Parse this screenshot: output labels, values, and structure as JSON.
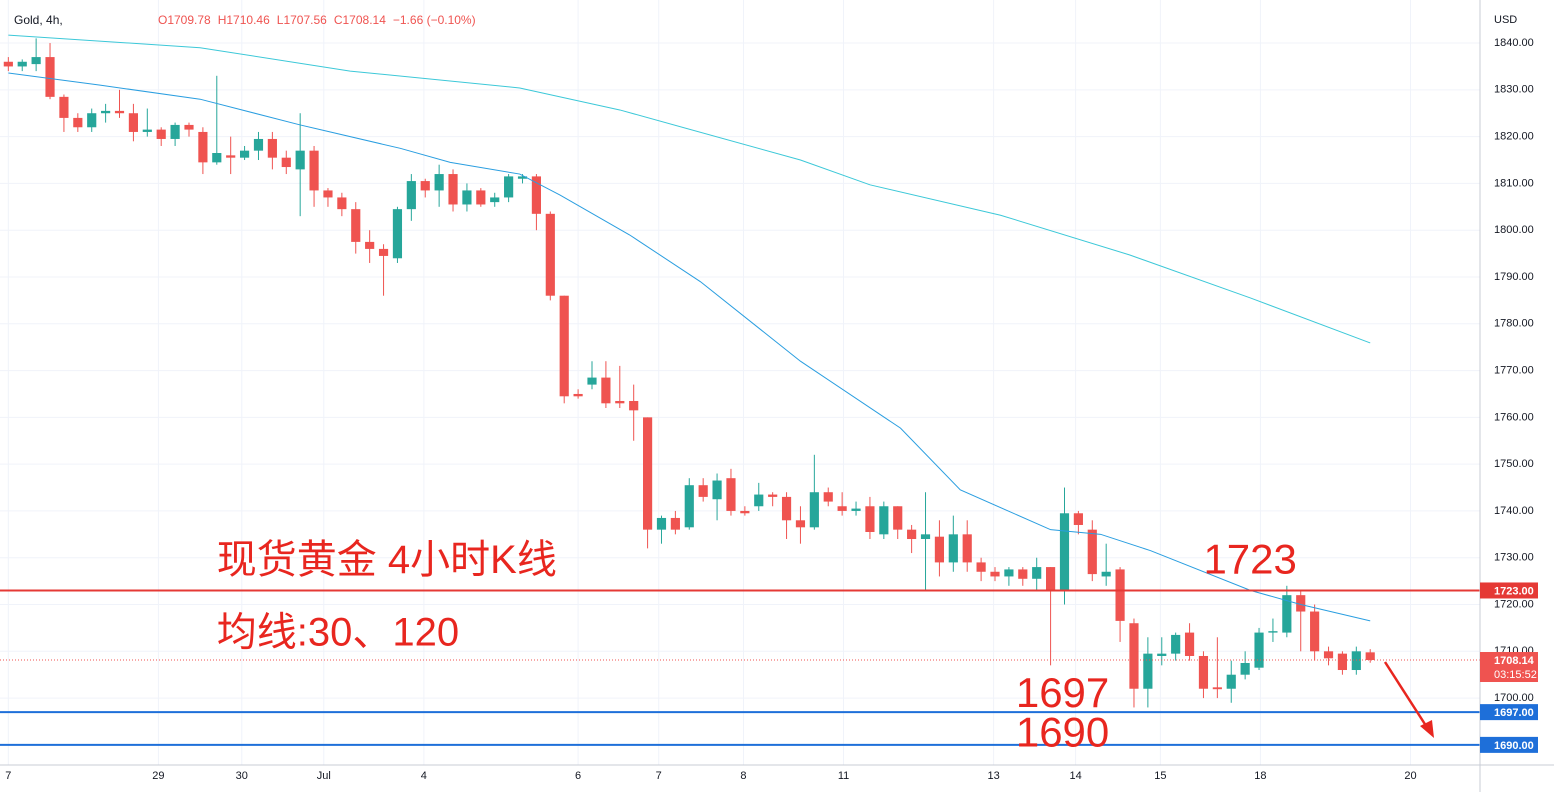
{
  "chart_data": {
    "type": "candlestick",
    "header": {
      "symbol": "Gold, 4h,",
      "ohlc": [
        "O1709.78",
        "H1710.46",
        "L1707.56",
        "C1708.14",
        "−1.66 (−0.10%)"
      ]
    },
    "currency": "USD",
    "annotations": [
      {
        "text": "现货黄金 4小时K线",
        "at": [
          15,
          1729
        ]
      },
      {
        "text": "均线:30、120",
        "at": [
          15,
          1713.5
        ]
      },
      {
        "text": "1723",
        "at": [
          86,
          1729
        ]
      },
      {
        "text": "1697",
        "at": [
          72.5,
          1700.5
        ]
      },
      {
        "text": "1690",
        "at": [
          72.5,
          1692
        ]
      }
    ],
    "open": [
      1836,
      1835,
      1835.5,
      1837,
      1828.5,
      1824,
      1822,
      1825,
      1825.5,
      1825,
      1821,
      1821.5,
      1819.5,
      1822.5,
      1821,
      1814.5,
      1816,
      1815.5,
      1817,
      1819.5,
      1815.5,
      1813,
      1817,
      1808.5,
      1807,
      1804.5,
      1797.5,
      1796,
      1794,
      1804.5,
      1810.5,
      1808.5,
      1812,
      1805.5,
      1808.5,
      1806,
      1807,
      1811,
      1811.5,
      1803.5,
      1786,
      1765,
      1767,
      1768.5,
      1763.5,
      1763.5,
      1760,
      1736,
      1738.5,
      1736.5,
      1745.5,
      1742.5,
      1747,
      1740,
      1741,
      1743.5,
      1743,
      1738,
      1736.5,
      1744,
      1741,
      1740,
      1741,
      1735,
      1741,
      1736,
      1734,
      1734.5,
      1729,
      1735,
      1729,
      1727,
      1726,
      1727.5,
      1725.5,
      1728,
      1723,
      1739.5,
      1736,
      1726,
      1727.5,
      1716,
      1702,
      1709,
      1709.5,
      1714,
      1709,
      1702.3,
      1702,
      1705,
      1706.5,
      1714,
      1714,
      1722,
      1718.5,
      1710,
      1709.5,
      1706,
      1709.78
    ],
    "high": [
      1837,
      1836.5,
      1841,
      1840,
      1829,
      1825,
      1826,
      1827,
      1830,
      1827,
      1826,
      1822,
      1823,
      1823,
      1822,
      1833,
      1820,
      1818,
      1821,
      1821,
      1817,
      1825,
      1818,
      1809,
      1808,
      1806,
      1800,
      1797,
      1805,
      1812,
      1811,
      1814,
      1813,
      1810,
      1809,
      1808,
      1812,
      1812,
      1812,
      1804,
      1786,
      1766,
      1772,
      1772,
      1771,
      1767,
      1760,
      1739,
      1740,
      1747,
      1747,
      1748,
      1749,
      1741,
      1746,
      1744,
      1744,
      1741,
      1752,
      1745,
      1744,
      1742,
      1743,
      1742,
      1741,
      1737,
      1744,
      1738,
      1739,
      1738,
      1730,
      1728,
      1728,
      1728,
      1730,
      1728,
      1745,
      1740,
      1738,
      1733,
      1728,
      1717,
      1713,
      1713,
      1714,
      1716,
      1710,
      1713,
      1708,
      1710,
      1715,
      1717,
      1724,
      1723,
      1720,
      1711,
      1710,
      1711,
      1710.46
    ],
    "low": [
      1834,
      1834,
      1834,
      1828,
      1821,
      1821,
      1821,
      1823,
      1824,
      1819,
      1820,
      1818,
      1818,
      1820,
      1812,
      1814,
      1812,
      1815,
      1815,
      1813,
      1812,
      1803,
      1805,
      1805,
      1803,
      1795,
      1793,
      1786,
      1793,
      1802,
      1807,
      1805,
      1804,
      1804,
      1805,
      1805,
      1806,
      1810,
      1800,
      1785,
      1763,
      1764,
      1766,
      1762,
      1762,
      1755,
      1732,
      1733,
      1735,
      1736,
      1742,
      1738,
      1739,
      1739,
      1740,
      1741,
      1734,
      1733,
      1736,
      1741,
      1739,
      1739,
      1734,
      1734,
      1734,
      1731,
      1723,
      1726,
      1727,
      1727,
      1725,
      1725,
      1724,
      1724,
      1723,
      1707,
      1720,
      1735,
      1725,
      1724,
      1712,
      1698,
      1698,
      1707,
      1708,
      1708,
      1700,
      1700,
      1699,
      1704,
      1706,
      1712,
      1713,
      1710,
      1708,
      1707,
      1705,
      1705,
      1707.56
    ],
    "close": [
      1835,
      1836,
      1837,
      1828.5,
      1824,
      1822,
      1825,
      1825.5,
      1825,
      1821,
      1821.5,
      1819.5,
      1822.5,
      1821.5,
      1814.5,
      1816.5,
      1815.5,
      1817,
      1819.5,
      1815.5,
      1813.5,
      1817,
      1808.5,
      1807,
      1804.5,
      1797.5,
      1796,
      1794.5,
      1804.5,
      1810.5,
      1808.5,
      1812,
      1805.5,
      1808.5,
      1805.5,
      1807,
      1811.5,
      1811.5,
      1803.5,
      1786,
      1764.5,
      1764.5,
      1768.5,
      1763,
      1763,
      1761.5,
      1736,
      1738.5,
      1736,
      1745.5,
      1743,
      1746.5,
      1740,
      1739.5,
      1743.5,
      1743,
      1738,
      1736.5,
      1744,
      1742,
      1740,
      1740.5,
      1735.5,
      1741,
      1736,
      1734,
      1735,
      1729,
      1735,
      1729,
      1727,
      1726,
      1727.5,
      1725.5,
      1728,
      1723,
      1739.5,
      1737,
      1726.5,
      1727,
      1716.5,
      1702,
      1709.5,
      1709.5,
      1713.5,
      1709,
      1702,
      1701.9,
      1705,
      1707.5,
      1714,
      1714.3,
      1722,
      1718.5,
      1710,
      1708.5,
      1706,
      1710,
      1708.14
    ],
    "up_color": "#26a69a",
    "down_color": "#ef5350",
    "series": [
      {
        "name": "MA30",
        "color": "#2a9ee0",
        "x": [
          0,
          6.6,
          13.8,
          21,
          28.2,
          31.8,
          36.8,
          39.7,
          44.7,
          49.8,
          57,
          64.2,
          68.5,
          75,
          78.6,
          82.2,
          89.4,
          93,
          98
        ],
        "values": [
          1833.6,
          1831,
          1828,
          1822.5,
          1817.5,
          1814.5,
          1812,
          1807.5,
          1799,
          1789,
          1772,
          1757.7,
          1744.5,
          1736,
          1735,
          1731.5,
          1723,
          1720,
          1716.5
        ]
      },
      {
        "name": "MA120",
        "color": "#3cc8d8",
        "x": [
          0,
          13.8,
          24.6,
          36.8,
          44,
          57,
          62,
          71.4,
          80.7,
          89.4,
          98
        ],
        "values": [
          1841.7,
          1839,
          1834,
          1830.4,
          1825.7,
          1815,
          1809.7,
          1803.2,
          1794.7,
          1785.5,
          1775.9
        ]
      }
    ],
    "levels": [
      {
        "value": 1723,
        "label": "1723.00",
        "color": "#e53935"
      },
      {
        "value": 1697,
        "label": "1697.00",
        "color": "#1e6fd9"
      },
      {
        "value": 1690,
        "label": "1690.00",
        "color": "#1e6fd9"
      }
    ],
    "last_price": {
      "value": 1708.14,
      "label": "1708.14",
      "countdown": "03:15:52",
      "color": "#ef5350"
    },
    "xlim": [
      -0.6,
      105.9
    ],
    "ylim": [
      1685.7,
      1849.2
    ],
    "xticks": [
      {
        "value": 0,
        "label": "7"
      },
      {
        "value": 10.8,
        "label": "29"
      },
      {
        "value": 16.8,
        "label": "30"
      },
      {
        "value": 22.7,
        "label": "Jul"
      },
      {
        "value": 29.9,
        "label": "4"
      },
      {
        "value": 41,
        "label": "6"
      },
      {
        "value": 46.8,
        "label": "7"
      },
      {
        "value": 52.9,
        "label": "8"
      },
      {
        "value": 60.1,
        "label": "11"
      },
      {
        "value": 70.9,
        "label": "13"
      },
      {
        "value": 76.8,
        "label": "14"
      },
      {
        "value": 82.9,
        "label": "15"
      },
      {
        "value": 90.1,
        "label": "18"
      },
      {
        "value": 100.9,
        "label": "20"
      }
    ],
    "yticks": [
      {
        "value": 1700,
        "label": "1700.00"
      },
      {
        "value": 1710,
        "label": "1710.00"
      },
      {
        "value": 1720,
        "label": "1720.00"
      },
      {
        "value": 1730,
        "label": "1730.00"
      },
      {
        "value": 1740,
        "label": "1740.00"
      },
      {
        "value": 1750,
        "label": "1750.00"
      },
      {
        "value": 1760,
        "label": "1760.00"
      },
      {
        "value": 1770,
        "label": "1770.00"
      },
      {
        "value": 1780,
        "label": "1780.00"
      },
      {
        "value": 1790,
        "label": "1790.00"
      },
      {
        "value": 1800,
        "label": "1800.00"
      },
      {
        "value": 1810,
        "label": "1810.00"
      },
      {
        "value": 1820,
        "label": "1820.00"
      },
      {
        "value": 1830,
        "label": "1830.00"
      },
      {
        "value": 1840,
        "label": "1840.00"
      }
    ],
    "grid": true,
    "annotation_color": "#e8261f"
  }
}
